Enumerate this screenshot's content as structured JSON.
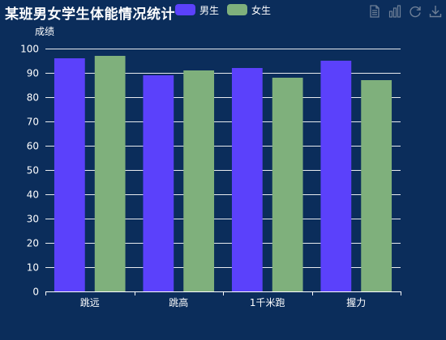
{
  "colors": {
    "background": "#0b2d5b",
    "male": "#5b41fb",
    "female": "#7fb07c",
    "toolbox": "#6e7f97",
    "axis": "#ffffff"
  },
  "toolbox": {
    "icons": [
      "data-view-icon",
      "bar-chart-icon",
      "refresh-icon",
      "download-icon"
    ]
  },
  "chart_data": {
    "type": "bar",
    "title": "某班男女学生体能情况统计",
    "ylabel": "成绩",
    "xlabel": "",
    "categories": [
      "跳远",
      "跳高",
      "1千米跑",
      "握力"
    ],
    "series": [
      {
        "name": "男生",
        "values": [
          96,
          89,
          92,
          95
        ]
      },
      {
        "name": "女生",
        "values": [
          97,
          91,
          88,
          87
        ]
      }
    ],
    "ylim": [
      0,
      100
    ],
    "yticks": [
      0,
      10,
      20,
      30,
      40,
      50,
      60,
      70,
      80,
      90,
      100
    ],
    "grid": true,
    "legend": "top-center"
  }
}
